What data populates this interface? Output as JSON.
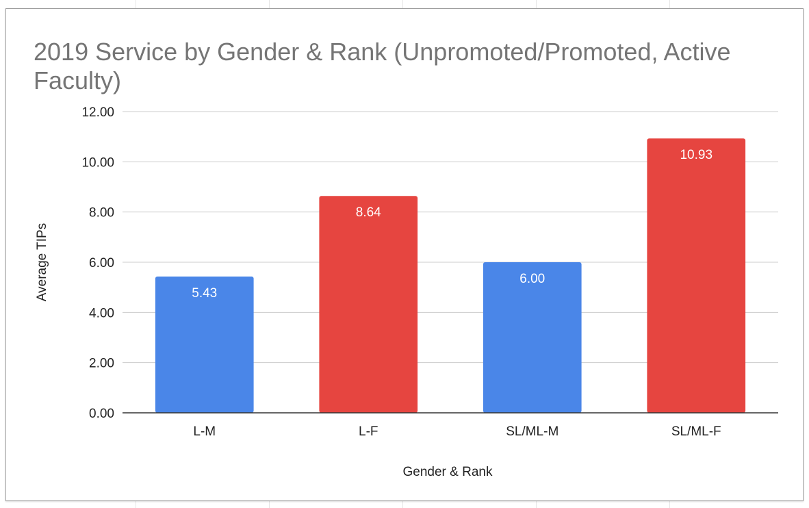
{
  "chart_data": {
    "type": "bar",
    "title": "2019 Service by Gender & Rank (Unpromoted/Promoted, Active Faculty)",
    "xlabel": "Gender & Rank",
    "ylabel": "Average TIPs",
    "categories": [
      "L-M",
      "L-F",
      "SL/ML-M",
      "SL/ML-F"
    ],
    "values": [
      5.43,
      8.64,
      6.0,
      10.93
    ],
    "data_labels": [
      "5.43",
      "8.64",
      "6.00",
      "10.93"
    ],
    "bar_colors": [
      "#4a86e8",
      "#e64540",
      "#4a86e8",
      "#e64540"
    ],
    "ylim": [
      0,
      12
    ],
    "yticks": [
      "0.00",
      "2.00",
      "4.00",
      "6.00",
      "8.00",
      "10.00",
      "12.00"
    ],
    "grid": true,
    "legend": "none"
  }
}
